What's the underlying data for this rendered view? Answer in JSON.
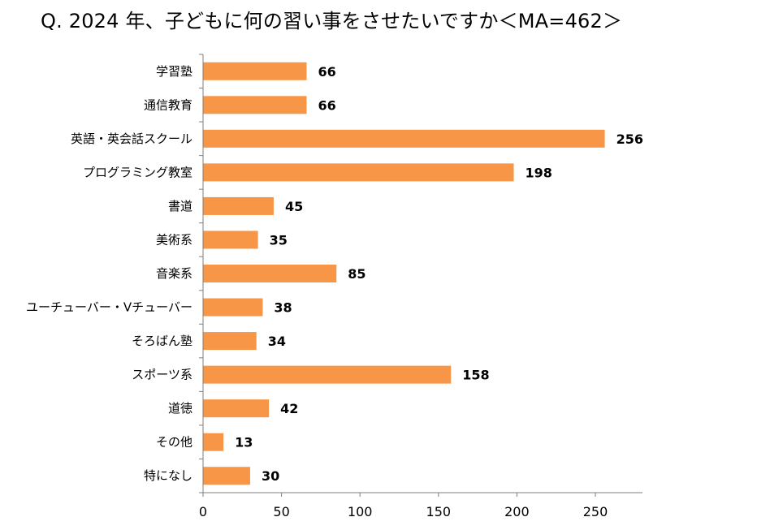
{
  "chart_data": {
    "type": "bar",
    "orientation": "horizontal",
    "title": "Q. 2024 年、子どもに何の習い事をさせたいですか＜MA=462＞",
    "categories": [
      "学習塾",
      "通信教育",
      "英語・英会話スクール",
      "プログラミング教室",
      "書道",
      "美術系",
      "音楽系",
      "ユーチューバー・Vチューバー",
      "そろばん塾",
      "スポーツ系",
      "道徳",
      "その他",
      "特になし"
    ],
    "values": [
      66,
      66,
      256,
      198,
      45,
      35,
      85,
      38,
      34,
      158,
      42,
      13,
      30
    ],
    "xlim": [
      0,
      280
    ],
    "xticks": [
      0,
      50,
      100,
      150,
      200,
      250
    ],
    "grid": false,
    "bar_color": "#F79646"
  }
}
